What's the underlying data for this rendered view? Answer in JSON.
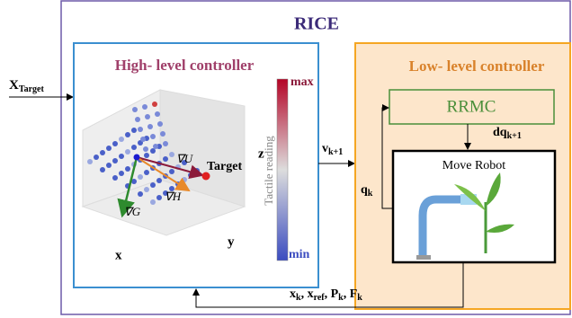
{
  "title": "RICE",
  "input": {
    "base": "X",
    "sub": "Target"
  },
  "high_level": {
    "title": "High- level controller",
    "colorbar": {
      "max": "max",
      "min": "min",
      "label": "Tactile reading"
    },
    "axes": {
      "x": "x",
      "y": "y",
      "z": "z"
    },
    "target": "Target",
    "grad_u": "∇U",
    "grad_h": "∇H",
    "grad_g": "∇G"
  },
  "velocity": {
    "base": "v",
    "sub": "k+1"
  },
  "low_level": {
    "title": "Low- level controller",
    "rrmc": "RRMC",
    "dq": {
      "base": "dq",
      "sub": "k+1"
    },
    "q": {
      "base": "q",
      "sub": "k"
    },
    "robot": "Move Robot"
  },
  "feedback": [
    {
      "base": "x",
      "sub": "k"
    },
    {
      "base": ", x",
      "sub": "ref"
    },
    {
      "base": ", P",
      "sub": "k"
    },
    {
      "base": ", F",
      "sub": "k"
    }
  ]
}
